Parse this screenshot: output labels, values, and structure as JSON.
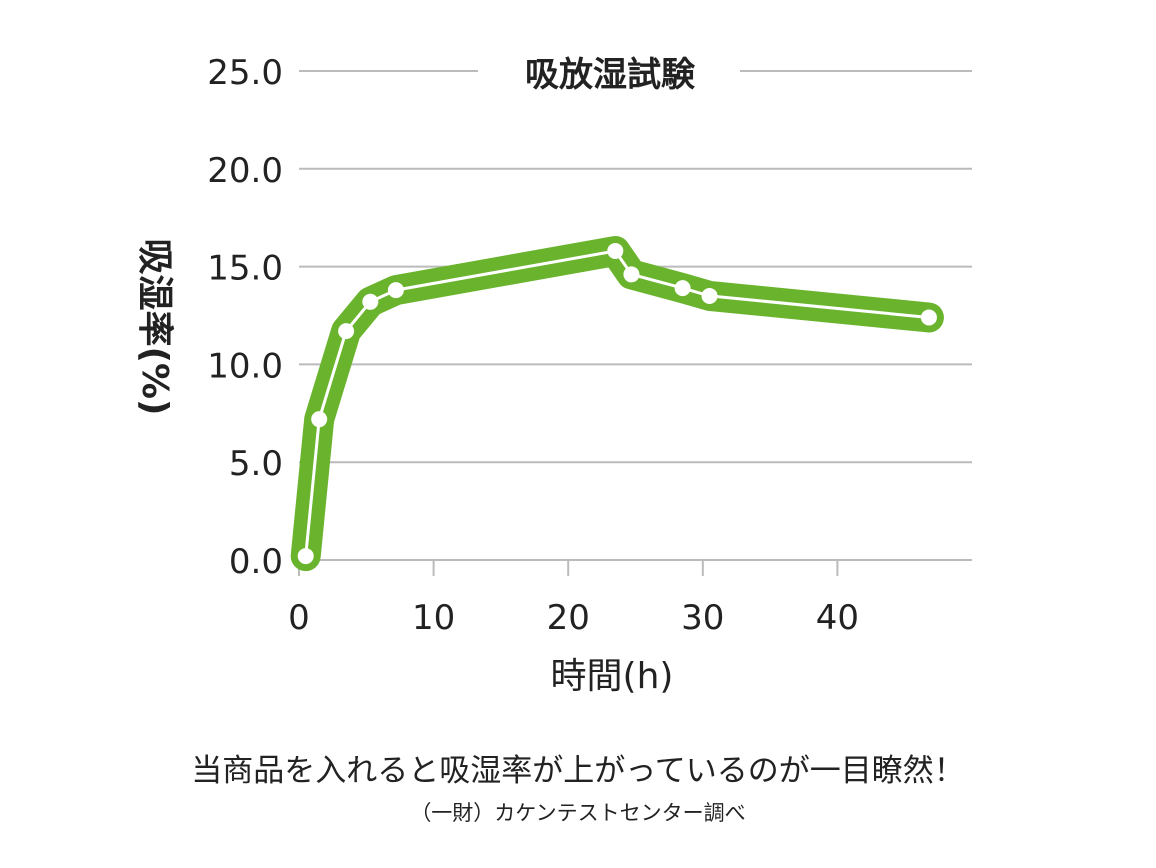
{
  "chart_data": {
    "type": "line",
    "title": "吸放湿試験",
    "xlabel": "時間(h)",
    "ylabel": "吸湿率(%)",
    "xlim": [
      0,
      50
    ],
    "ylim": [
      0,
      25
    ],
    "x_ticks": [
      "0",
      "10",
      "20",
      "30",
      "40"
    ],
    "y_ticks": [
      "0.0",
      "5.0",
      "10.0",
      "15.0",
      "20.0",
      "25.0"
    ],
    "grid": "horizontal",
    "series": [
      {
        "x": [
          0.5,
          1.5,
          3.5,
          5.3,
          7.2,
          23.5,
          24.7,
          28.5,
          30.5,
          46.8
        ],
        "y": [
          0.2,
          7.2,
          11.7,
          13.2,
          13.8,
          15.8,
          14.6,
          13.9,
          13.5,
          12.4
        ]
      }
    ],
    "colors": {
      "band": "#6ab42d",
      "line": "#ffffff",
      "grid": "#bbbbbb",
      "text": "#222222"
    }
  },
  "caption": {
    "main": "当商品を入れると吸湿率が上がっているのが一目瞭然！",
    "source": "（一財）カケンテストセンター調べ"
  }
}
